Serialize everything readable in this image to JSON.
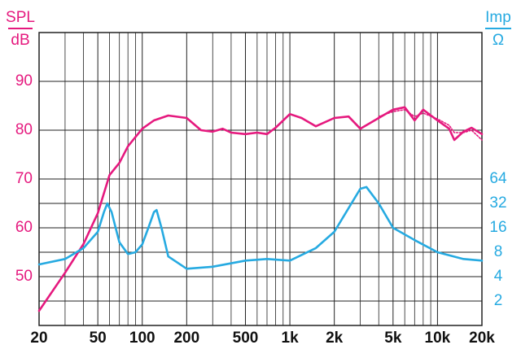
{
  "chart_data": {
    "type": "line",
    "ylabel_top": "SPL",
    "ylabel_bottom": "dB",
    "y2label_top": "Imp",
    "y2label_bottom": "Ω",
    "xlog": true,
    "y2log": true,
    "grid": true,
    "xlim": [
      20,
      20000
    ],
    "xticks": [
      20,
      50,
      100,
      200,
      500,
      {
        "value": 1000,
        "label": "1k"
      },
      {
        "value": 2000,
        "label": "2k"
      },
      {
        "value": 5000,
        "label": "5k"
      },
      {
        "value": 10000,
        "label": "10k"
      },
      {
        "value": 20000,
        "label": "20k"
      }
    ],
    "xminorticks": [
      30,
      40,
      60,
      70,
      80,
      90,
      300,
      400,
      600,
      700,
      800,
      900,
      3000,
      4000,
      6000,
      7000,
      8000,
      9000
    ],
    "ylim": [
      40,
      100
    ],
    "yticks": [
      50,
      60,
      70,
      80,
      90
    ],
    "ycolor": "#e5197e",
    "y2lim": [
      1,
      4096
    ],
    "y2ticks": [
      2,
      4,
      8,
      16,
      32,
      64
    ],
    "y2color": "#26aae1",
    "series": [
      {
        "color": "#e5197e",
        "x": [
          20,
          30,
          40,
          50,
          60,
          70,
          80,
          100,
          120,
          150,
          200,
          250,
          300,
          350,
          400,
          500,
          600,
          700,
          800,
          1000,
          1200,
          1500,
          2000,
          2500,
          3000,
          4000,
          5000,
          6000,
          7000,
          8000,
          10000,
          12000,
          13000,
          15000,
          17000,
          20000
        ],
        "values": [
          43,
          50.8,
          56.7,
          63,
          70.8,
          73.3,
          76.7,
          80.3,
          82,
          83,
          82.5,
          80,
          79.7,
          80.3,
          79.5,
          79.2,
          79.5,
          79.2,
          80.5,
          83.3,
          82.5,
          80.8,
          82.5,
          82.8,
          80.3,
          82.5,
          84.2,
          84.7,
          82,
          84.2,
          82,
          80.3,
          78,
          79.7,
          80.5,
          79.2
        ]
      },
      {
        "color": "#e5197e",
        "dotted": true,
        "x": [
          4000,
          5000,
          6000,
          7000,
          8000,
          10000,
          12000,
          13000,
          15000,
          17000,
          20000
        ],
        "values": [
          82.8,
          83.8,
          84.2,
          82.8,
          83.5,
          82.3,
          81,
          79.5,
          79.5,
          80,
          78
        ]
      },
      {
        "color": "#26aae1",
        "axis": "y2",
        "x": [
          20,
          30,
          40,
          50,
          55,
          58,
          62,
          70,
          80,
          90,
          100,
          110,
          120,
          125,
          135,
          150,
          200,
          300,
          500,
          700,
          1000,
          1500,
          2000,
          3000,
          3300,
          4000,
          5000,
          7000,
          10000,
          15000,
          20000
        ],
        "values": [
          5.66,
          6.6,
          9,
          14.3,
          25,
          32,
          25,
          10.6,
          7.6,
          8,
          10,
          16,
          25,
          26.5,
          16,
          7.1,
          5,
          5.3,
          6.3,
          6.6,
          6.3,
          9,
          14.3,
          48.5,
          51,
          32,
          16,
          11.3,
          8,
          6.6,
          6.3
        ]
      }
    ]
  }
}
